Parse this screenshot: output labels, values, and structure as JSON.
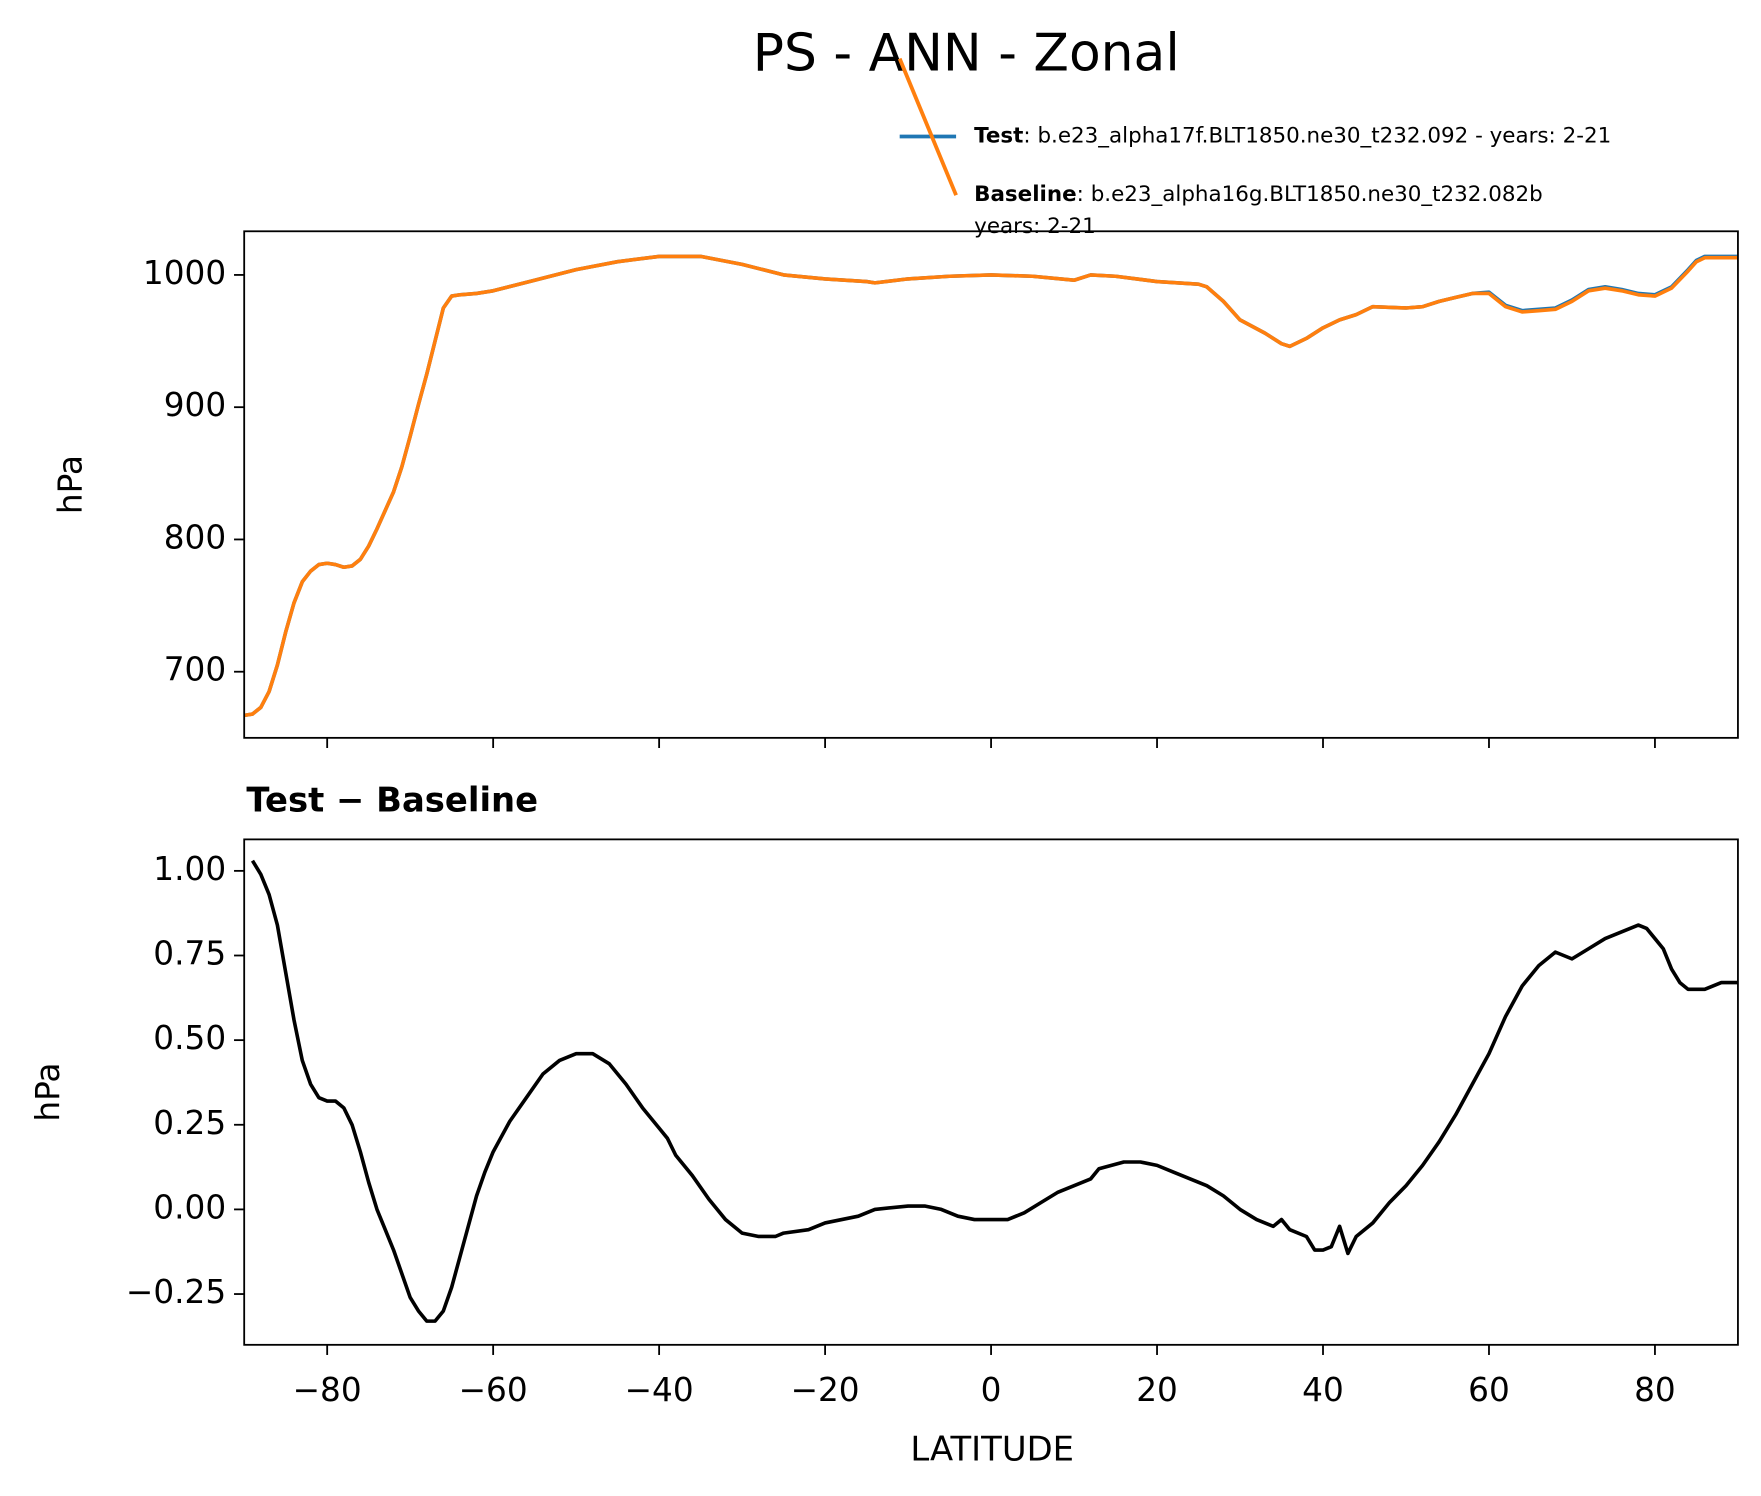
{
  "chart_data": [
    {
      "type": "line",
      "title": "PS - ANN - Zonal",
      "ylabel": "hPa",
      "x": [
        -90,
        -89,
        -88,
        -87,
        -86,
        -85,
        -84,
        -83,
        -82,
        -81,
        -80,
        -79,
        -78,
        -77,
        -76,
        -75,
        -74,
        -73,
        -72,
        -71,
        -70,
        -69,
        -68,
        -67,
        -66,
        -65,
        -64,
        -62,
        -60,
        -55,
        -50,
        -45,
        -40,
        -35,
        -30,
        -25,
        -20,
        -15,
        -14,
        -10,
        -5,
        0,
        5,
        10,
        12,
        15,
        20,
        25,
        26,
        28,
        30,
        33,
        35,
        36,
        38,
        40,
        42,
        44,
        46,
        50,
        52,
        54,
        56,
        58,
        60,
        62,
        64,
        66,
        68,
        70,
        72,
        74,
        76,
        78,
        80,
        82,
        84,
        85,
        86,
        90
      ],
      "series": [
        {
          "name": "Test",
          "description": [
            ": b.e23_alpha17f.BLT1850.ne30_t232.092 - years: 2-21"
          ],
          "color": "#1f77b4",
          "values": [
            667,
            668,
            673,
            685,
            705,
            730,
            752,
            768,
            776,
            781,
            782,
            781,
            779,
            780,
            785,
            795,
            808,
            822,
            836,
            855,
            878,
            902,
            925,
            950,
            975,
            984,
            985,
            986,
            988,
            996,
            1004,
            1010,
            1014,
            1014,
            1008,
            1000,
            997,
            995,
            994,
            997,
            999,
            1000,
            999,
            996,
            1000,
            999,
            995,
            993,
            991,
            980,
            966,
            956,
            948,
            946,
            952,
            960,
            966,
            970,
            976,
            975,
            976,
            980,
            983,
            986,
            987,
            977,
            973,
            974,
            975,
            981,
            989,
            991,
            989,
            986,
            985,
            991,
            1004,
            1011,
            1014,
            1014
          ]
        },
        {
          "name": "Baseline",
          "description": [
            ": b.e23_alpha16g.BLT1850.ne30_t232.082b",
            "years: 2-21"
          ],
          "color": "#ff7f0e",
          "values": [
            667,
            668,
            673,
            685,
            705,
            730,
            752,
            768,
            776,
            781,
            782,
            781,
            779,
            780,
            785,
            795,
            808,
            822,
            836,
            855,
            878,
            902,
            925,
            950,
            975,
            984,
            985,
            986,
            988,
            996,
            1004,
            1010,
            1014,
            1014,
            1008,
            1000,
            997,
            995,
            994,
            997,
            999,
            1000,
            999,
            996,
            1000,
            999,
            995,
            993,
            991,
            980,
            966,
            956,
            948,
            946,
            952,
            960,
            966,
            970,
            976,
            975,
            976,
            980,
            983,
            986,
            986,
            976,
            972,
            973,
            974,
            980,
            988,
            990,
            988,
            985,
            984,
            990,
            1003,
            1010,
            1013,
            1013
          ]
        }
      ],
      "xlim": [
        -90,
        90
      ],
      "xticks": [
        -80,
        -60,
        -40,
        -20,
        0,
        20,
        40,
        60,
        80
      ],
      "ylim": [
        650,
        1033
      ],
      "yticks": [
        700,
        800,
        900,
        1000
      ]
    },
    {
      "type": "line",
      "subtitle": "Test − Baseline",
      "xlabel": "LATITUDE",
      "ylabel": "hPa",
      "x": [
        -89,
        -88,
        -87,
        -86,
        -85,
        -84,
        -83,
        -82,
        -81,
        -80,
        -79,
        -78,
        -77,
        -76,
        -75,
        -74,
        -73,
        -72,
        -71,
        -70,
        -69,
        -68,
        -67,
        -66,
        -65,
        -64,
        -63,
        -62,
        -61,
        -60,
        -58,
        -56,
        -54,
        -52,
        -50,
        -48,
        -46,
        -45,
        -44,
        -42,
        -40,
        -39,
        -38,
        -36,
        -34,
        -32,
        -30,
        -28,
        -26,
        -25,
        -22,
        -20,
        -16,
        -14,
        -10,
        -8,
        -6,
        -4,
        -2,
        0,
        2,
        4,
        6,
        8,
        10,
        12,
        13,
        16,
        18,
        20,
        22,
        24,
        26,
        28,
        30,
        32,
        34,
        35,
        36,
        38,
        39,
        40,
        41,
        42,
        43,
        44,
        46,
        48,
        50,
        52,
        54,
        56,
        58,
        60,
        62,
        64,
        66,
        68,
        70,
        72,
        74,
        76,
        78,
        79,
        80,
        81,
        82,
        83,
        84,
        86,
        88,
        90
      ],
      "series": [
        {
          "name": "Test − Baseline",
          "color": "#000000",
          "values": [
            1.03,
            0.99,
            0.93,
            0.84,
            0.7,
            0.56,
            0.44,
            0.37,
            0.33,
            0.32,
            0.32,
            0.3,
            0.25,
            0.17,
            0.08,
            0.0,
            -0.06,
            -0.12,
            -0.19,
            -0.26,
            -0.3,
            -0.33,
            -0.33,
            -0.3,
            -0.23,
            -0.14,
            -0.05,
            0.04,
            0.11,
            0.17,
            0.26,
            0.33,
            0.4,
            0.44,
            0.46,
            0.46,
            0.43,
            0.4,
            0.37,
            0.3,
            0.24,
            0.21,
            0.16,
            0.1,
            0.03,
            -0.03,
            -0.07,
            -0.08,
            -0.08,
            -0.07,
            -0.06,
            -0.04,
            -0.02,
            0.0,
            0.01,
            0.01,
            0.0,
            -0.02,
            -0.03,
            -0.03,
            -0.03,
            -0.01,
            0.02,
            0.05,
            0.07,
            0.09,
            0.12,
            0.14,
            0.14,
            0.13,
            0.11,
            0.09,
            0.07,
            0.04,
            0.0,
            -0.03,
            -0.05,
            -0.03,
            -0.06,
            -0.08,
            -0.12,
            -0.12,
            -0.11,
            -0.05,
            -0.13,
            -0.08,
            -0.04,
            0.02,
            0.07,
            0.13,
            0.2,
            0.28,
            0.37,
            0.46,
            0.57,
            0.66,
            0.72,
            0.76,
            0.74,
            0.77,
            0.8,
            0.82,
            0.84,
            0.83,
            0.8,
            0.77,
            0.71,
            0.67,
            0.65,
            0.65,
            0.67,
            0.67
          ]
        }
      ],
      "xlim": [
        -90,
        90
      ],
      "xticks": [
        {
          "value": -80,
          "label": "−80"
        },
        {
          "value": -60,
          "label": "−60"
        },
        {
          "value": -40,
          "label": "−40"
        },
        {
          "value": -20,
          "label": "−20"
        },
        0,
        20,
        40,
        60,
        80
      ],
      "ylim": [
        -0.4,
        1.093
      ],
      "yticks": [
        {
          "value": -0.25,
          "label": "−0.25"
        },
        {
          "value": 0,
          "label": "0.00"
        },
        {
          "value": 0.25,
          "label": "0.25"
        },
        {
          "value": 0.5,
          "label": "0.50"
        },
        {
          "value": 0.75,
          "label": "0.75"
        },
        {
          "value": 1,
          "label": "1.00"
        }
      ]
    }
  ]
}
